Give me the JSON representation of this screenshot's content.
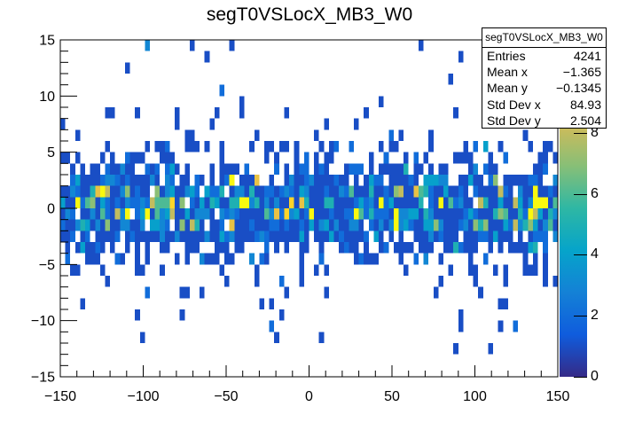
{
  "title": "segT0VSLocX_MB3_W0",
  "stats_box": {
    "header": "segT0VSLocX_MB3_W0",
    "rows": [
      {
        "label": "Entries",
        "value": "4241"
      },
      {
        "label": "Mean x",
        "value": "−1.365"
      },
      {
        "label": "Mean y",
        "value": "−0.1345"
      },
      {
        "label": "Std Dev x",
        "value": "84.93"
      },
      {
        "label": "Std Dev y",
        "value": "2.504"
      }
    ]
  },
  "colors": {
    "background": "#ffffff",
    "axis": "#000000",
    "text": "#000000"
  },
  "chart_data": {
    "type": "heatmap",
    "title": "segT0VSLocX_MB3_W0",
    "x_range": [
      -150,
      150
    ],
    "y_range": [
      -15,
      15
    ],
    "x_bins": 100,
    "y_bins": 30,
    "x_ticks": [
      -150,
      -100,
      -50,
      0,
      50,
      100,
      150
    ],
    "x_minor_step": 10,
    "y_ticks": [
      -15,
      -10,
      -5,
      0,
      5,
      10,
      15
    ],
    "y_minor_step": 1,
    "z_range": [
      0,
      11.05
    ],
    "z_ticks": [
      0,
      2,
      4,
      6,
      8
    ],
    "grid": false,
    "legend_position": "right-colorbar",
    "stats": {
      "entries": 4241,
      "mean_x": -1.365,
      "mean_y": -0.1345,
      "std_dev_x": 84.93,
      "std_dev_y": 2.504
    },
    "palette_name": "ROOT-kBird",
    "palette": [
      "#352a87",
      "#0f5cdd",
      "#1481d6",
      "#06a4ca",
      "#2eb7a4",
      "#87bf77",
      "#d1bb59",
      "#fec832",
      "#f9fb0e"
    ],
    "row_profile_note": "occupancy = fraction of the 100 x-bins filled in that y-row; mean_count = mean bin content of filled bins (exponential spread, clamped 1..11)",
    "row_profile": [
      {
        "y_center": -14.5,
        "occupancy": 0.01,
        "mean_count": 0.5
      },
      {
        "y_center": -13.5,
        "occupancy": 0.012,
        "mean_count": 0.5
      },
      {
        "y_center": -12.5,
        "occupancy": 0.02,
        "mean_count": 0.5
      },
      {
        "y_center": -11.5,
        "occupancy": 0.018,
        "mean_count": 0.5
      },
      {
        "y_center": -10.5,
        "occupancy": 0.03,
        "mean_count": 0.5
      },
      {
        "y_center": -9.5,
        "occupancy": 0.035,
        "mean_count": 0.5
      },
      {
        "y_center": -8.5,
        "occupancy": 0.05,
        "mean_count": 0.6
      },
      {
        "y_center": -7.5,
        "occupancy": 0.08,
        "mean_count": 0.6
      },
      {
        "y_center": -6.5,
        "occupancy": 0.13,
        "mean_count": 0.7
      },
      {
        "y_center": -5.5,
        "occupancy": 0.22,
        "mean_count": 0.8
      },
      {
        "y_center": -4.5,
        "occupancy": 0.38,
        "mean_count": 0.9
      },
      {
        "y_center": -3.5,
        "occupancy": 0.62,
        "mean_count": 1.1
      },
      {
        "y_center": -2.5,
        "occupancy": 0.84,
        "mean_count": 1.6
      },
      {
        "y_center": -1.5,
        "occupancy": 0.94,
        "mean_count": 2.5
      },
      {
        "y_center": -0.5,
        "occupancy": 0.97,
        "mean_count": 3.5
      },
      {
        "y_center": 0.5,
        "occupancy": 0.97,
        "mean_count": 3.4
      },
      {
        "y_center": 1.5,
        "occupancy": 0.93,
        "mean_count": 2.6
      },
      {
        "y_center": 2.5,
        "occupancy": 0.82,
        "mean_count": 1.7
      },
      {
        "y_center": 3.5,
        "occupancy": 0.58,
        "mean_count": 1.1
      },
      {
        "y_center": 4.5,
        "occupancy": 0.32,
        "mean_count": 0.9
      },
      {
        "y_center": 5.5,
        "occupancy": 0.2,
        "mean_count": 0.8
      },
      {
        "y_center": 6.5,
        "occupancy": 0.12,
        "mean_count": 0.7
      },
      {
        "y_center": 7.5,
        "occupancy": 0.07,
        "mean_count": 0.6
      },
      {
        "y_center": 8.5,
        "occupancy": 0.05,
        "mean_count": 0.6
      },
      {
        "y_center": 9.5,
        "occupancy": 0.03,
        "mean_count": 0.5
      },
      {
        "y_center": 10.5,
        "occupancy": 0.02,
        "mean_count": 0.5
      },
      {
        "y_center": 11.5,
        "occupancy": 0.02,
        "mean_count": 0.5
      },
      {
        "y_center": 12.5,
        "occupancy": 0.022,
        "mean_count": 0.5
      },
      {
        "y_center": 13.5,
        "occupancy": 0.01,
        "mean_count": 0.5
      },
      {
        "y_center": 14.5,
        "occupancy": 0.01,
        "mean_count": 0.5
      }
    ],
    "seed": 1337
  }
}
